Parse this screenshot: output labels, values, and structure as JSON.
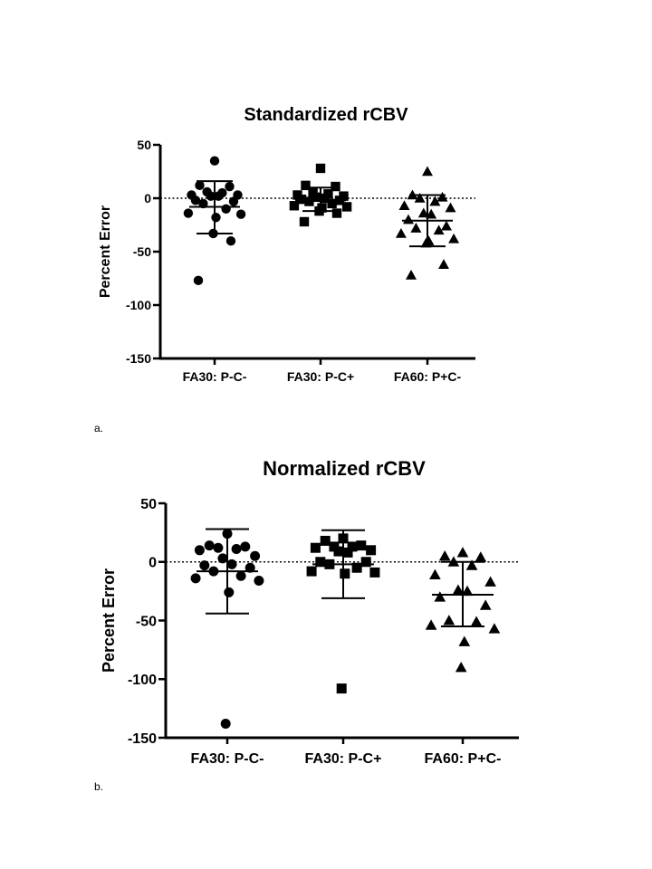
{
  "chart_data": [
    {
      "type": "scatter",
      "title": "Standardized rCBV",
      "ylabel": "Percent Error",
      "xlabel": "",
      "ylim": [
        -150,
        50
      ],
      "yticks": [
        50,
        0,
        -50,
        -100,
        -150
      ],
      "zero_line": "dotted",
      "categories": [
        "FA30: P-C-",
        "FA30: P-C+",
        "FA60: P+C-"
      ],
      "series": [
        {
          "marker": "circle",
          "mean": -8,
          "sd_low": -33,
          "sd_high": 16,
          "values": [
            35,
            12,
            11,
            6,
            5,
            3,
            3,
            2,
            2,
            -2,
            -3,
            -5,
            -10,
            -14,
            -15,
            -18,
            -33,
            -40,
            -77
          ]
        },
        {
          "marker": "square",
          "mean": -2,
          "sd_low": -12,
          "sd_high": 10,
          "values": [
            28,
            12,
            11,
            5,
            4,
            3,
            2,
            1,
            0,
            -1,
            -2,
            -3,
            -5,
            -7,
            -8,
            -9,
            -12,
            -14,
            -22
          ]
        },
        {
          "marker": "triangle",
          "mean": -21,
          "sd_low": -45,
          "sd_high": 3,
          "values": [
            25,
            3,
            1,
            0,
            -3,
            -7,
            -9,
            -14,
            -15,
            -20,
            -26,
            -28,
            -30,
            -33,
            -38,
            -40,
            -42,
            -62,
            -72
          ]
        }
      ]
    },
    {
      "type": "scatter",
      "title": "Normalized rCBV",
      "ylabel": "Percent Error",
      "xlabel": "",
      "ylim": [
        -150,
        50
      ],
      "yticks": [
        50,
        0,
        -50,
        -100,
        -150
      ],
      "zero_line": "dotted",
      "categories": [
        "FA30: P-C-",
        "FA30: P-C+",
        "FA60: P+C-"
      ],
      "series": [
        {
          "marker": "circle",
          "mean": -8,
          "sd_low": -44,
          "sd_high": 28,
          "values": [
            24,
            14,
            13,
            12,
            11,
            10,
            5,
            3,
            -2,
            -3,
            -5,
            -8,
            -12,
            -14,
            -16,
            -26,
            -138
          ]
        },
        {
          "marker": "square",
          "mean": -2,
          "sd_low": -31,
          "sd_high": 27,
          "values": [
            20,
            18,
            14,
            13,
            13,
            12,
            10,
            9,
            8,
            0,
            0,
            -2,
            -5,
            -8,
            -9,
            -10,
            -108
          ]
        },
        {
          "marker": "triangle",
          "mean": -28,
          "sd_low": -55,
          "sd_high": 0,
          "values": [
            8,
            5,
            4,
            0,
            -3,
            -11,
            -17,
            -24,
            -25,
            -30,
            -37,
            -50,
            -51,
            -54,
            -57,
            -68,
            -90
          ]
        }
      ]
    }
  ],
  "captions": [
    "a.",
    "b."
  ]
}
